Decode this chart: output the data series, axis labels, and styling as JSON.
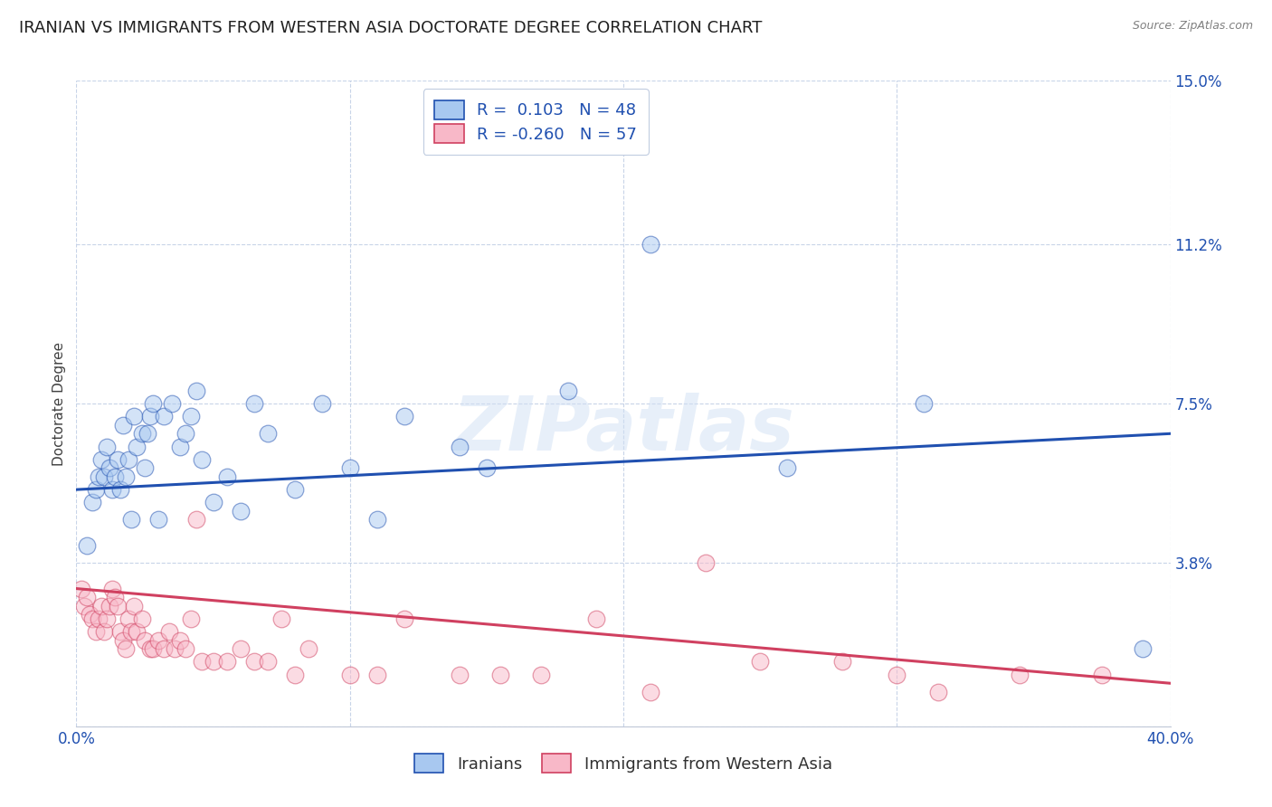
{
  "title": "IRANIAN VS IMMIGRANTS FROM WESTERN ASIA DOCTORATE DEGREE CORRELATION CHART",
  "source": "Source: ZipAtlas.com",
  "ylabel": "Doctorate Degree",
  "x_min": 0.0,
  "x_max": 0.4,
  "y_min": 0.0,
  "y_max": 0.15,
  "y_ticks": [
    0.0,
    0.038,
    0.075,
    0.112,
    0.15
  ],
  "y_tick_labels": [
    "",
    "3.8%",
    "7.5%",
    "11.2%",
    "15.0%"
  ],
  "x_ticks": [
    0.0,
    0.1,
    0.2,
    0.3,
    0.4
  ],
  "x_tick_labels": [
    "0.0%",
    "",
    "",
    "",
    "40.0%"
  ],
  "blue_color": "#a8c8f0",
  "pink_color": "#f8b8c8",
  "blue_line_color": "#2050b0",
  "pink_line_color": "#d04060",
  "legend_text_color": "#2050b0",
  "legend_r_blue": "0.103",
  "legend_n_blue": "48",
  "legend_r_pink": "-0.260",
  "legend_n_pink": "57",
  "legend_label_blue": "Iranians",
  "legend_label_pink": "Immigrants from Western Asia",
  "blue_x": [
    0.004,
    0.006,
    0.007,
    0.008,
    0.009,
    0.01,
    0.011,
    0.012,
    0.013,
    0.014,
    0.015,
    0.016,
    0.017,
    0.018,
    0.019,
    0.02,
    0.021,
    0.022,
    0.024,
    0.025,
    0.026,
    0.027,
    0.028,
    0.03,
    0.032,
    0.035,
    0.038,
    0.04,
    0.042,
    0.044,
    0.046,
    0.05,
    0.055,
    0.06,
    0.065,
    0.07,
    0.08,
    0.09,
    0.1,
    0.11,
    0.12,
    0.14,
    0.15,
    0.18,
    0.21,
    0.26,
    0.31,
    0.39
  ],
  "blue_y": [
    0.042,
    0.052,
    0.055,
    0.058,
    0.062,
    0.058,
    0.065,
    0.06,
    0.055,
    0.058,
    0.062,
    0.055,
    0.07,
    0.058,
    0.062,
    0.048,
    0.072,
    0.065,
    0.068,
    0.06,
    0.068,
    0.072,
    0.075,
    0.048,
    0.072,
    0.075,
    0.065,
    0.068,
    0.072,
    0.078,
    0.062,
    0.052,
    0.058,
    0.05,
    0.075,
    0.068,
    0.055,
    0.075,
    0.06,
    0.048,
    0.072,
    0.065,
    0.06,
    0.078,
    0.112,
    0.06,
    0.075,
    0.018
  ],
  "pink_x": [
    0.002,
    0.003,
    0.004,
    0.005,
    0.006,
    0.007,
    0.008,
    0.009,
    0.01,
    0.011,
    0.012,
    0.013,
    0.014,
    0.015,
    0.016,
    0.017,
    0.018,
    0.019,
    0.02,
    0.021,
    0.022,
    0.024,
    0.025,
    0.027,
    0.028,
    0.03,
    0.032,
    0.034,
    0.036,
    0.038,
    0.04,
    0.042,
    0.044,
    0.046,
    0.05,
    0.055,
    0.06,
    0.065,
    0.07,
    0.075,
    0.08,
    0.085,
    0.1,
    0.11,
    0.12,
    0.14,
    0.155,
    0.17,
    0.19,
    0.21,
    0.23,
    0.25,
    0.28,
    0.3,
    0.315,
    0.345,
    0.375
  ],
  "pink_y": [
    0.032,
    0.028,
    0.03,
    0.026,
    0.025,
    0.022,
    0.025,
    0.028,
    0.022,
    0.025,
    0.028,
    0.032,
    0.03,
    0.028,
    0.022,
    0.02,
    0.018,
    0.025,
    0.022,
    0.028,
    0.022,
    0.025,
    0.02,
    0.018,
    0.018,
    0.02,
    0.018,
    0.022,
    0.018,
    0.02,
    0.018,
    0.025,
    0.048,
    0.015,
    0.015,
    0.015,
    0.018,
    0.015,
    0.015,
    0.025,
    0.012,
    0.018,
    0.012,
    0.012,
    0.025,
    0.012,
    0.012,
    0.012,
    0.025,
    0.008,
    0.038,
    0.015,
    0.015,
    0.012,
    0.008,
    0.012,
    0.012
  ],
  "blue_trend_x": [
    0.0,
    0.4
  ],
  "blue_trend_y_start": 0.055,
  "blue_trend_y_end": 0.068,
  "pink_trend_x": [
    0.0,
    0.4
  ],
  "pink_trend_y_start": 0.032,
  "pink_trend_y_end": 0.01,
  "grid_color": "#c8d4e8",
  "background_color": "#ffffff",
  "title_fontsize": 13,
  "label_fontsize": 11,
  "tick_fontsize": 12,
  "dot_size": 180,
  "dot_alpha": 0.5,
  "line_width": 2.2
}
